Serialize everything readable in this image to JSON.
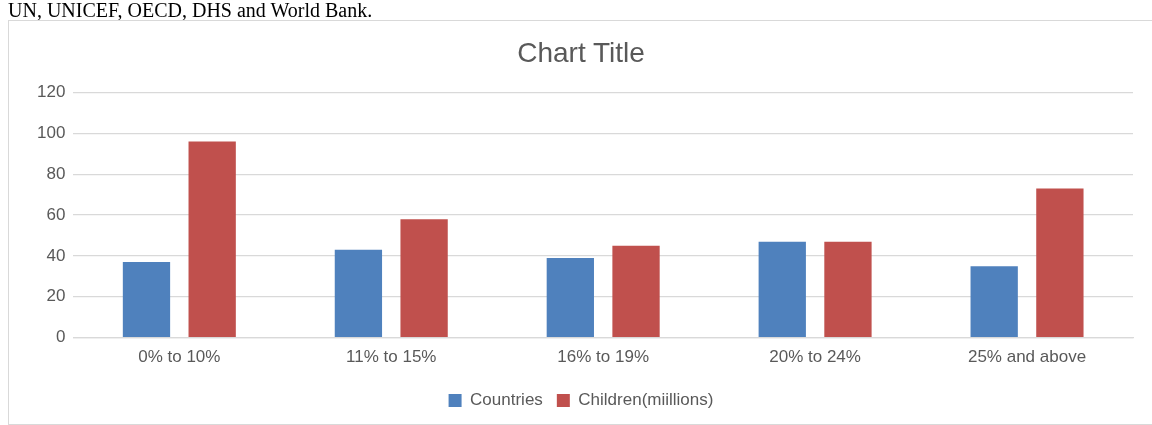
{
  "chart_data": {
    "type": "bar",
    "title": "Chart Title",
    "annotations": [
      "UN, UNICEF, OECD, DHS and World Bank."
    ],
    "categories": [
      "0% to 10%",
      "11% to 15%",
      "16% to 19%",
      "20% to 24%",
      "25% and above"
    ],
    "series": [
      {
        "name": "Countries",
        "color": "#4f81bd",
        "values": [
          37,
          43,
          39,
          47,
          35
        ]
      },
      {
        "name": "Children(miillions)",
        "color": "#c0504d",
        "values": [
          96,
          58,
          45,
          47,
          73
        ]
      }
    ],
    "ylim": [
      0,
      120
    ],
    "yticks": [
      0,
      20,
      40,
      60,
      80,
      100,
      120
    ],
    "grid": "y",
    "legend": "bottom"
  }
}
